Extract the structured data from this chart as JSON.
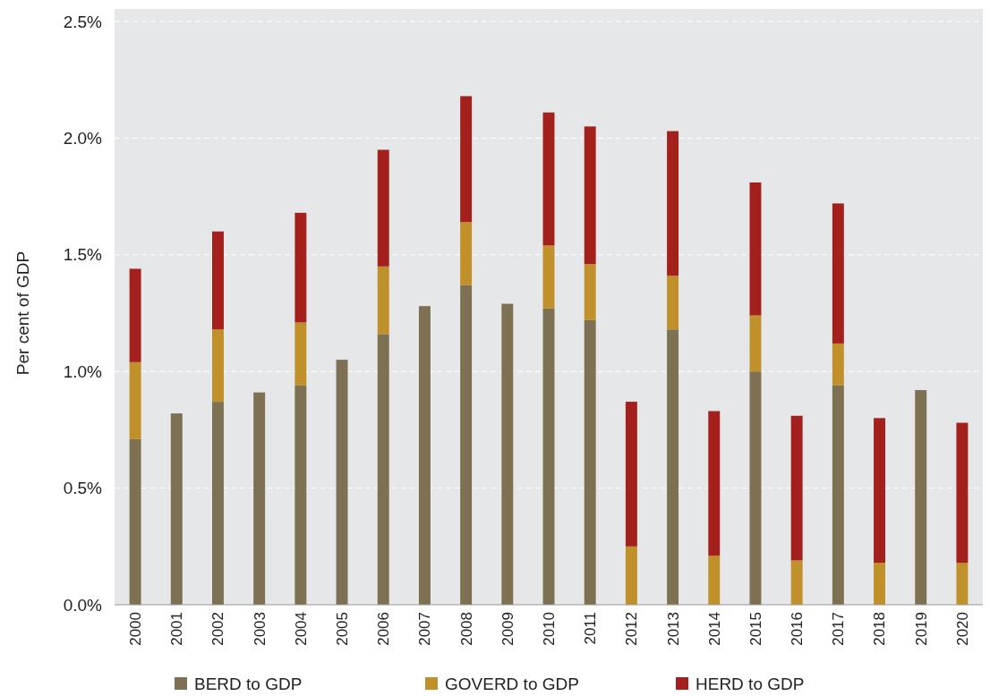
{
  "chart_data": {
    "type": "bar",
    "stacked": true,
    "ylabel": "Per cent of GDP",
    "categories": [
      "2000",
      "2001",
      "2002",
      "2003",
      "2004",
      "2005",
      "2006",
      "2007",
      "2008",
      "2009",
      "2010",
      "2011",
      "2012",
      "2013",
      "2014",
      "2015",
      "2016",
      "2017",
      "2018",
      "2019",
      "2020"
    ],
    "series": [
      {
        "name": "BERD to GDP",
        "color": "#7d7053",
        "values": [
          0.71,
          0.82,
          0.87,
          0.91,
          0.94,
          1.05,
          1.16,
          1.28,
          1.37,
          1.29,
          1.27,
          1.22,
          null,
          1.18,
          null,
          1.0,
          null,
          0.94,
          null,
          0.92,
          null
        ]
      },
      {
        "name": "GOVERD to GDP",
        "color": "#c0902b",
        "values": [
          0.33,
          null,
          0.31,
          null,
          0.27,
          null,
          0.29,
          null,
          0.27,
          null,
          0.27,
          0.24,
          0.25,
          0.23,
          0.21,
          0.24,
          0.19,
          0.18,
          0.18,
          null,
          0.18
        ]
      },
      {
        "name": "HERD to GDP",
        "color": "#a4201d",
        "values": [
          0.4,
          null,
          0.42,
          null,
          0.47,
          null,
          0.5,
          null,
          0.54,
          null,
          0.57,
          0.59,
          0.62,
          0.62,
          0.62,
          0.57,
          0.62,
          0.6,
          0.62,
          null,
          0.6
        ]
      }
    ],
    "ylim": [
      0,
      2.5
    ],
    "yticks": [
      {
        "value": 0,
        "label": "0.0%"
      },
      {
        "value": 0.5,
        "label": "0.5%"
      },
      {
        "value": 1,
        "label": "1.0%"
      },
      {
        "value": 1.5,
        "label": "1.5%"
      },
      {
        "value": 2,
        "label": "2.0%"
      },
      {
        "value": 2.5,
        "label": "2.5%"
      }
    ],
    "grid": "y",
    "legend": "bottom"
  }
}
